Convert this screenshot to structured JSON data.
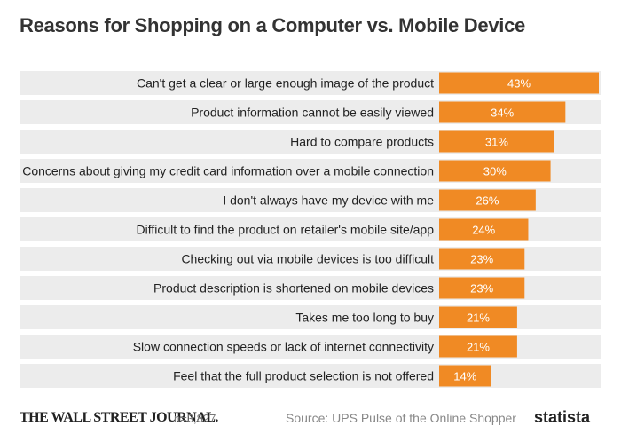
{
  "chart_data": {
    "type": "bar",
    "orientation": "horizontal",
    "title": "Reasons for Shopping on a Computer vs. Mobile Device",
    "categories": [
      "Can't get a clear or large enough image of the product",
      "Product information cannot be easily viewed",
      "Hard to compare products",
      "Concerns about giving my credit card information over a mobile connection",
      "I don't always have my device with me",
      "Difficult to find the product on retailer's mobile site/app",
      "Checking out via mobile devices is too difficult",
      "Product description is shortened on mobile devices",
      "Takes me too long to buy",
      "Slow connection speeds or lack of internet connectivity",
      "Feel that the full product selection is not offered"
    ],
    "values": [
      43,
      34,
      31,
      30,
      26,
      24,
      23,
      23,
      21,
      21,
      14
    ],
    "value_labels": [
      "43%",
      "34%",
      "31%",
      "30%",
      "26%",
      "24%",
      "23%",
      "23%",
      "21%",
      "21%",
      "14%"
    ],
    "unit": "%",
    "xlim": [
      0,
      43
    ],
    "grid": false,
    "legend": "none",
    "colors": {
      "bar": "#f08a24",
      "row_background": "#ececec",
      "value_text": "#ffffff"
    }
  },
  "footer": {
    "publisher": "THE WALL STREET JOURNAL.",
    "sample_size": "n=3,827",
    "source": "Source: UPS Pulse of the Online Shopper",
    "brand": "statista"
  }
}
